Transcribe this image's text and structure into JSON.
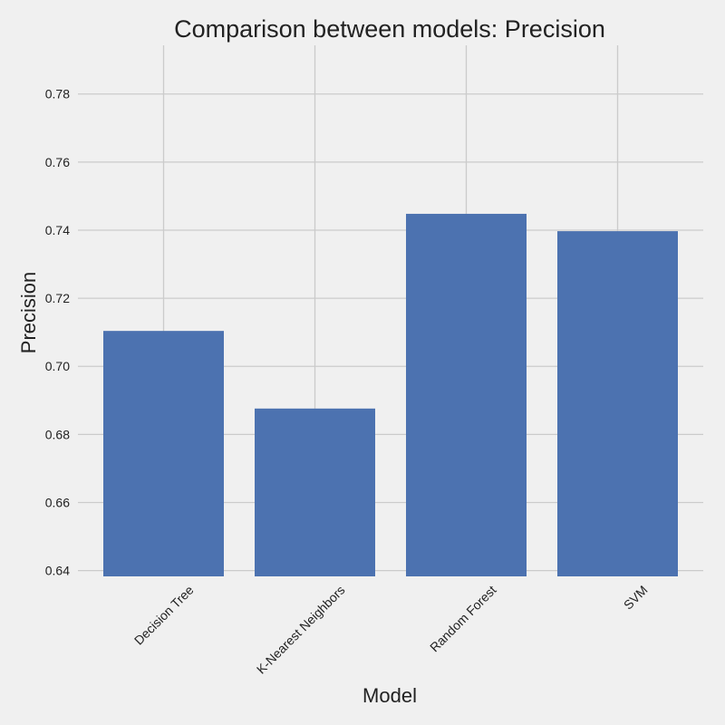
{
  "chart_data": {
    "type": "bar",
    "title": "Comparison between models: Precision",
    "xlabel": "Model",
    "ylabel": "Precision",
    "categories": [
      "Decision Tree",
      "K-Nearest Neighbors",
      "Random Forest",
      "SVM"
    ],
    "values": [
      0.7104,
      0.6876,
      0.7448,
      0.7397
    ],
    "ylim": [
      0.6383,
      0.7943
    ],
    "yticks": [
      0.64,
      0.66,
      0.68,
      0.7,
      0.72,
      0.74,
      0.76,
      0.78
    ],
    "ytick_labels": [
      "0.64",
      "0.66",
      "0.68",
      "0.70",
      "0.72",
      "0.74",
      "0.76",
      "0.78"
    ],
    "grid": true,
    "bar_color": "#4c72b0",
    "background_color": "#f0f0f0",
    "grid_color": "#cbcbcb"
  }
}
